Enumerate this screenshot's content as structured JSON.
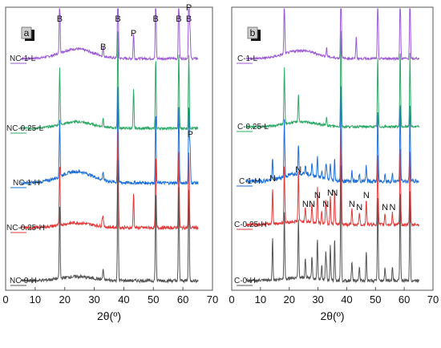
{
  "chart_data": [
    {
      "type": "line",
      "panel_badge": "a",
      "x_ticks": [
        "0",
        "10",
        "20",
        "30",
        "40",
        "50",
        "60",
        "70"
      ],
      "xlabel": "2θ(º)",
      "xlim": [
        0,
        70
      ],
      "y_axis_visible": false,
      "grid": false,
      "series": [
        {
          "name": "NC-1-L",
          "color": "#9b59d6"
        },
        {
          "name": "NC-0.25-L",
          "color": "#2ea866"
        },
        {
          "name": "NC-1-H",
          "color": "#1e6fd8"
        },
        {
          "name": "NC-0.25-H",
          "color": "#e23a3a"
        },
        {
          "name": "NC-0-H",
          "color": "#555555"
        }
      ],
      "peak_annotations": [
        {
          "text": "B",
          "x": 18.3
        },
        {
          "text": "B",
          "x": 33
        },
        {
          "text": "B",
          "x": 38
        },
        {
          "text": "B",
          "x": 50.8
        },
        {
          "text": "B",
          "x": 58.6
        },
        {
          "text": "B",
          "x": 62
        },
        {
          "text": "P",
          "x": 43.3
        },
        {
          "text": "P",
          "x": 62
        },
        {
          "text": "P",
          "x": 62.5
        }
      ]
    },
    {
      "type": "line",
      "panel_badge": "b",
      "x_ticks": [
        "0",
        "10",
        "20",
        "30",
        "40",
        "50",
        "60",
        "70"
      ],
      "xlabel": "2θ(º)",
      "xlim": [
        0,
        70
      ],
      "y_axis_visible": false,
      "grid": false,
      "series": [
        {
          "name": "C-1-L",
          "color": "#9b59d6"
        },
        {
          "name": "C-0.25-L",
          "color": "#2ea866"
        },
        {
          "name": "C-1-H",
          "color": "#1e6fd8"
        },
        {
          "name": "C-0.25-H",
          "color": "#e23a3a"
        },
        {
          "name": "C-0-H",
          "color": "#555555"
        }
      ],
      "peak_annotations": [
        {
          "text": "N",
          "x": 14.2
        },
        {
          "text": "N",
          "x": 23.2
        },
        {
          "text": "N",
          "x": 25.6
        },
        {
          "text": "N",
          "x": 27.9
        },
        {
          "text": "N",
          "x": 29.8
        },
        {
          "text": "N",
          "x": 32.7
        },
        {
          "text": "N",
          "x": 34.3
        },
        {
          "text": "N",
          "x": 35.8
        },
        {
          "text": "N",
          "x": 41.8
        },
        {
          "text": "N",
          "x": 44.4
        },
        {
          "text": "N",
          "x": 46.8
        },
        {
          "text": "N",
          "x": 53.3
        },
        {
          "text": "N",
          "x": 55.9
        }
      ]
    }
  ]
}
